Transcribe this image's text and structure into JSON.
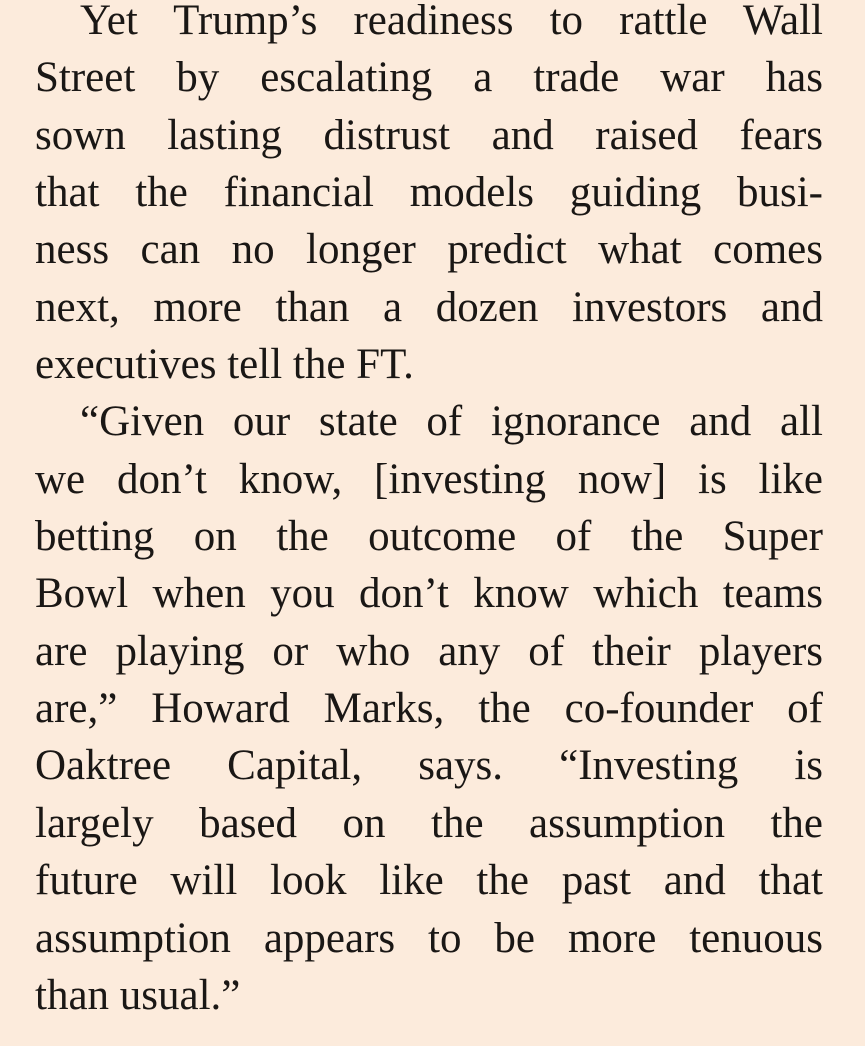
{
  "article": {
    "paragraphs": [
      {
        "lines": [
          "Yet Trump’s readiness to rattle Wall",
          "Street by escalating a trade war has",
          "sown lasting distrust and raised fears",
          "that the financial models guiding busi-",
          "ness can no longer predict what comes",
          "next, more than a dozen investors and",
          "executives tell the FT."
        ]
      },
      {
        "lines": [
          "“Given our state of ignorance and all",
          "we don’t know, [investing now] is like",
          "betting on the outcome of the Super",
          "Bowl when you don’t know which teams",
          "are playing or who any of their players",
          "are,” Howard Marks, the co-founder of",
          "Oaktree Capital, says. “Investing is",
          "largely based on the assumption the",
          "future will look like the past and that",
          "assumption appears to be more tenuous",
          "than usual.”"
        ]
      }
    ]
  }
}
